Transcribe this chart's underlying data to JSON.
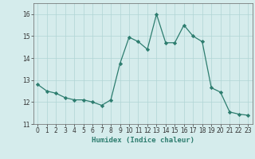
{
  "x": [
    0,
    1,
    2,
    3,
    4,
    5,
    6,
    7,
    8,
    9,
    10,
    11,
    12,
    13,
    14,
    15,
    16,
    17,
    18,
    19,
    20,
    21,
    22,
    23
  ],
  "y": [
    12.8,
    12.5,
    12.4,
    12.2,
    12.1,
    12.1,
    12.0,
    11.85,
    12.1,
    13.75,
    14.95,
    14.75,
    14.4,
    16.0,
    14.7,
    14.7,
    15.5,
    15.0,
    14.75,
    12.65,
    12.45,
    11.55,
    11.45,
    11.4
  ],
  "xlabel": "Humidex (Indice chaleur)",
  "ylim": [
    11,
    16.5
  ],
  "xlim": [
    -0.5,
    23.5
  ],
  "yticks": [
    11,
    12,
    13,
    14,
    15,
    16
  ],
  "xticks": [
    0,
    1,
    2,
    3,
    4,
    5,
    6,
    7,
    8,
    9,
    10,
    11,
    12,
    13,
    14,
    15,
    16,
    17,
    18,
    19,
    20,
    21,
    22,
    23
  ],
  "line_color": "#2d7d6f",
  "marker_color": "#2d7d6f",
  "bg_color": "#d5ecec",
  "grid_color": "#b0d4d4",
  "xlabel_fontsize": 6.5,
  "tick_fontsize": 5.5
}
